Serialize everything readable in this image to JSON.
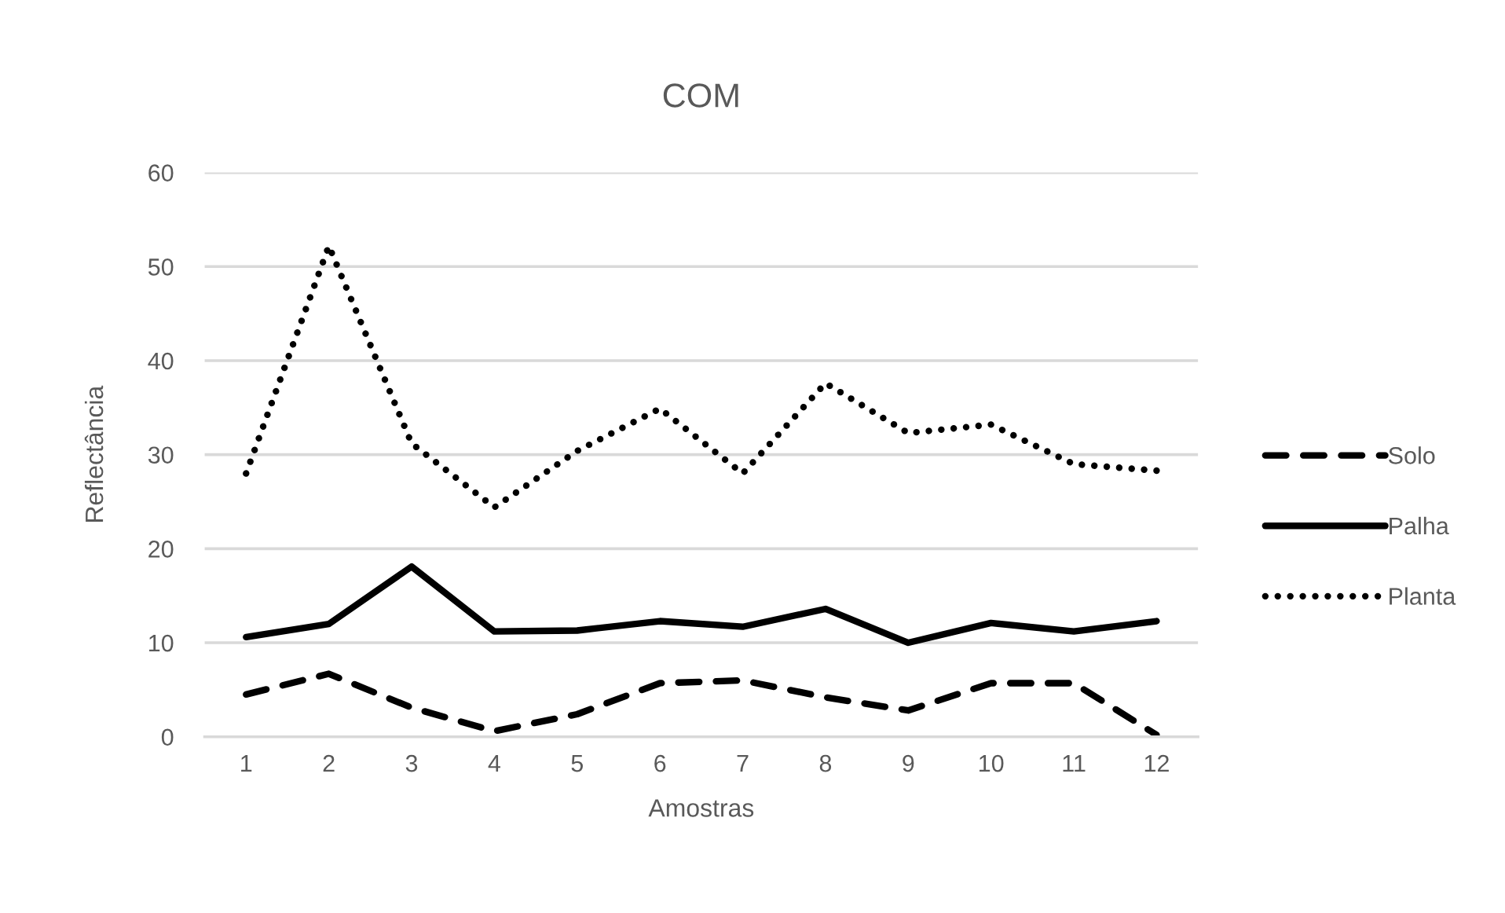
{
  "chart_data": {
    "type": "line",
    "title": "COM",
    "xlabel": "Amostras",
    "ylabel": "Reflectância",
    "categories": [
      "1",
      "2",
      "3",
      "4",
      "5",
      "6",
      "7",
      "8",
      "9",
      "10",
      "11",
      "12"
    ],
    "series": [
      {
        "name": "Solo",
        "color": "#000000",
        "line_style": "dashed",
        "values": [
          4.5,
          6.7,
          3.1,
          0.6,
          2.4,
          5.7,
          6.0,
          4.2,
          2.8,
          5.7,
          5.7,
          0.2
        ]
      },
      {
        "name": "Palha",
        "color": "#000000",
        "line_style": "solid",
        "values": [
          10.6,
          12.0,
          18.1,
          11.2,
          11.3,
          12.3,
          11.7,
          13.6,
          10.0,
          12.1,
          11.2,
          12.3
        ]
      },
      {
        "name": "Planta",
        "color": "#000000",
        "line_style": "dotted",
        "values": [
          28.0,
          52.2,
          31.2,
          24.4,
          30.4,
          34.9,
          28.0,
          37.6,
          32.3,
          33.2,
          29.0,
          28.3
        ]
      }
    ],
    "ylim": [
      0,
      60
    ],
    "yticks": [
      0,
      10,
      20,
      30,
      40,
      50,
      60
    ],
    "grid": "y",
    "legend": "right"
  }
}
